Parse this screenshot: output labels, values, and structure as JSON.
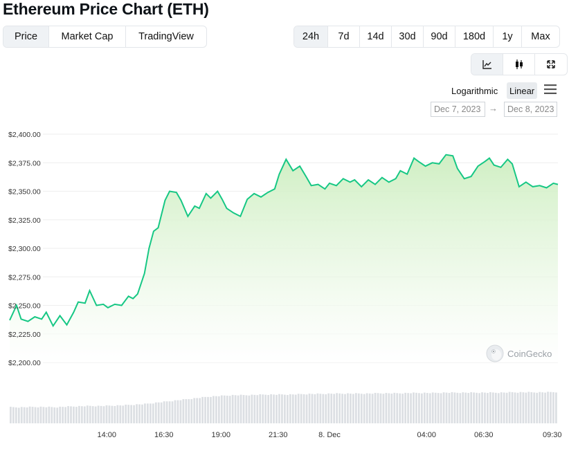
{
  "page": {
    "title": "Ethereum Price Chart (ETH)"
  },
  "view_tabs": [
    {
      "label": "Price",
      "active": true
    },
    {
      "label": "Market Cap",
      "active": false
    },
    {
      "label": "TradingView",
      "active": false
    }
  ],
  "range_tabs": [
    {
      "label": "24h",
      "active": true
    },
    {
      "label": "7d",
      "active": false
    },
    {
      "label": "14d",
      "active": false
    },
    {
      "label": "30d",
      "active": false
    },
    {
      "label": "90d",
      "active": false
    },
    {
      "label": "180d",
      "active": false
    },
    {
      "label": "1y",
      "active": false
    },
    {
      "label": "Max",
      "active": false
    }
  ],
  "chart_type_buttons": [
    {
      "icon": "line-chart-icon",
      "active": true
    },
    {
      "icon": "candlestick-icon",
      "active": false
    },
    {
      "icon": "fullscreen-icon",
      "active": false
    }
  ],
  "scale": {
    "log_label": "Logarithmic",
    "linear_label": "Linear",
    "selected": "Linear"
  },
  "menu_icon": "hamburger-menu-icon",
  "date_range": {
    "from": "Dec 7, 2023",
    "to": "Dec 8, 2023",
    "arrow": "→"
  },
  "watermark": {
    "text": "CoinGecko",
    "icon": "coingecko-gecko-icon"
  },
  "colors": {
    "line": "#16c784",
    "fill": "#d4efc8",
    "volume": "#dcdfe3",
    "grid": "#eeeeee"
  },
  "chart_data": {
    "type": "area",
    "title": "",
    "xlabel": "",
    "ylabel": "",
    "ylim": [
      2200,
      2400
    ],
    "y_ticks": [
      "$2,400.00",
      "$2,375.00",
      "$2,350.00",
      "$2,325.00",
      "$2,300.00",
      "$2,275.00",
      "$2,250.00",
      "$2,225.00",
      "$2,200.00"
    ],
    "y_tick_values": [
      2400,
      2375,
      2350,
      2325,
      2300,
      2275,
      2250,
      2225,
      2200
    ],
    "x_ticks": [
      {
        "label": "14:00",
        "hour": 4.25
      },
      {
        "label": "16:30",
        "hour": 6.75
      },
      {
        "label": "19:00",
        "hour": 9.25
      },
      {
        "label": "21:30",
        "hour": 11.75
      },
      {
        "label": "8. Dec",
        "hour": 14.0
      },
      {
        "label": "04:00",
        "hour": 18.25
      },
      {
        "label": "06:30",
        "hour": 20.75
      },
      {
        "label": "09:30",
        "hour": 23.75
      }
    ],
    "x_range_hours": [
      0,
      24
    ],
    "grid": true,
    "legend": "none",
    "series": [
      {
        "x_hours": [
          0,
          0.3,
          0.5,
          0.8,
          1.1,
          1.4,
          1.6,
          1.9,
          2.2,
          2.5,
          2.8,
          3.0,
          3.3,
          3.5,
          3.8,
          4.1,
          4.3,
          4.6,
          4.9,
          5.2,
          5.4,
          5.6,
          5.9,
          6.1,
          6.3,
          6.5,
          6.8,
          7.0,
          7.3,
          7.5,
          7.8,
          8.1,
          8.3,
          8.6,
          8.8,
          9.1,
          9.3,
          9.5,
          9.8,
          10.1,
          10.4,
          10.7,
          11.0,
          11.3,
          11.6,
          11.8,
          12.1,
          12.4,
          12.7,
          13.0,
          13.2,
          13.5,
          13.8,
          14.0,
          14.3,
          14.6,
          14.9,
          15.1,
          15.4,
          15.7,
          16.0,
          16.3,
          16.6,
          16.9,
          17.1,
          17.4,
          17.7,
          17.9,
          18.2,
          18.5,
          18.8,
          19.1,
          19.4,
          19.6,
          19.9,
          20.2,
          20.5,
          20.8,
          21.0,
          21.2,
          21.5,
          21.8,
          22.0,
          22.3,
          22.6,
          22.9,
          23.2,
          23.5,
          23.8,
          24.0
        ],
        "values": [
          2237,
          2250,
          2238,
          2236,
          2240,
          2238,
          2244,
          2232,
          2241,
          2233,
          2244,
          2253,
          2252,
          2263,
          2250,
          2251,
          2248,
          2251,
          2250,
          2258,
          2256,
          2260,
          2278,
          2300,
          2315,
          2318,
          2342,
          2350,
          2349,
          2342,
          2328,
          2337,
          2335,
          2348,
          2344,
          2350,
          2343,
          2335,
          2331,
          2328,
          2343,
          2348,
          2345,
          2349,
          2352,
          2365,
          2378,
          2368,
          2372,
          2362,
          2355,
          2356,
          2352,
          2357,
          2355,
          2361,
          2358,
          2360,
          2354,
          2360,
          2356,
          2362,
          2358,
          2361,
          2368,
          2365,
          2379,
          2376,
          2372,
          2375,
          2374,
          2382,
          2381,
          2370,
          2361,
          2363,
          2372,
          2376,
          2379,
          2373,
          2371,
          2378,
          2374,
          2354,
          2358,
          2354,
          2355,
          2353,
          2357,
          2356
        ]
      }
    ],
    "volume": {
      "relative_values": [
        0.52,
        0.52,
        0.53,
        0.53,
        0.52,
        0.54,
        0.55,
        0.56,
        0.56,
        0.57,
        0.58,
        0.6,
        0.62,
        0.66,
        0.7,
        0.74,
        0.78,
        0.82,
        0.86,
        0.88,
        0.9,
        0.9,
        0.91,
        0.92,
        0.92,
        0.92,
        0.93,
        0.94,
        0.94,
        0.95,
        0.95,
        0.95,
        0.95,
        0.96,
        0.96,
        0.96,
        0.97,
        0.97,
        0.97,
        0.98,
        0.98,
        0.98,
        0.98,
        0.98,
        0.98,
        0.99,
        0.99,
        0.99,
        0.99,
        1.0
      ]
    }
  }
}
